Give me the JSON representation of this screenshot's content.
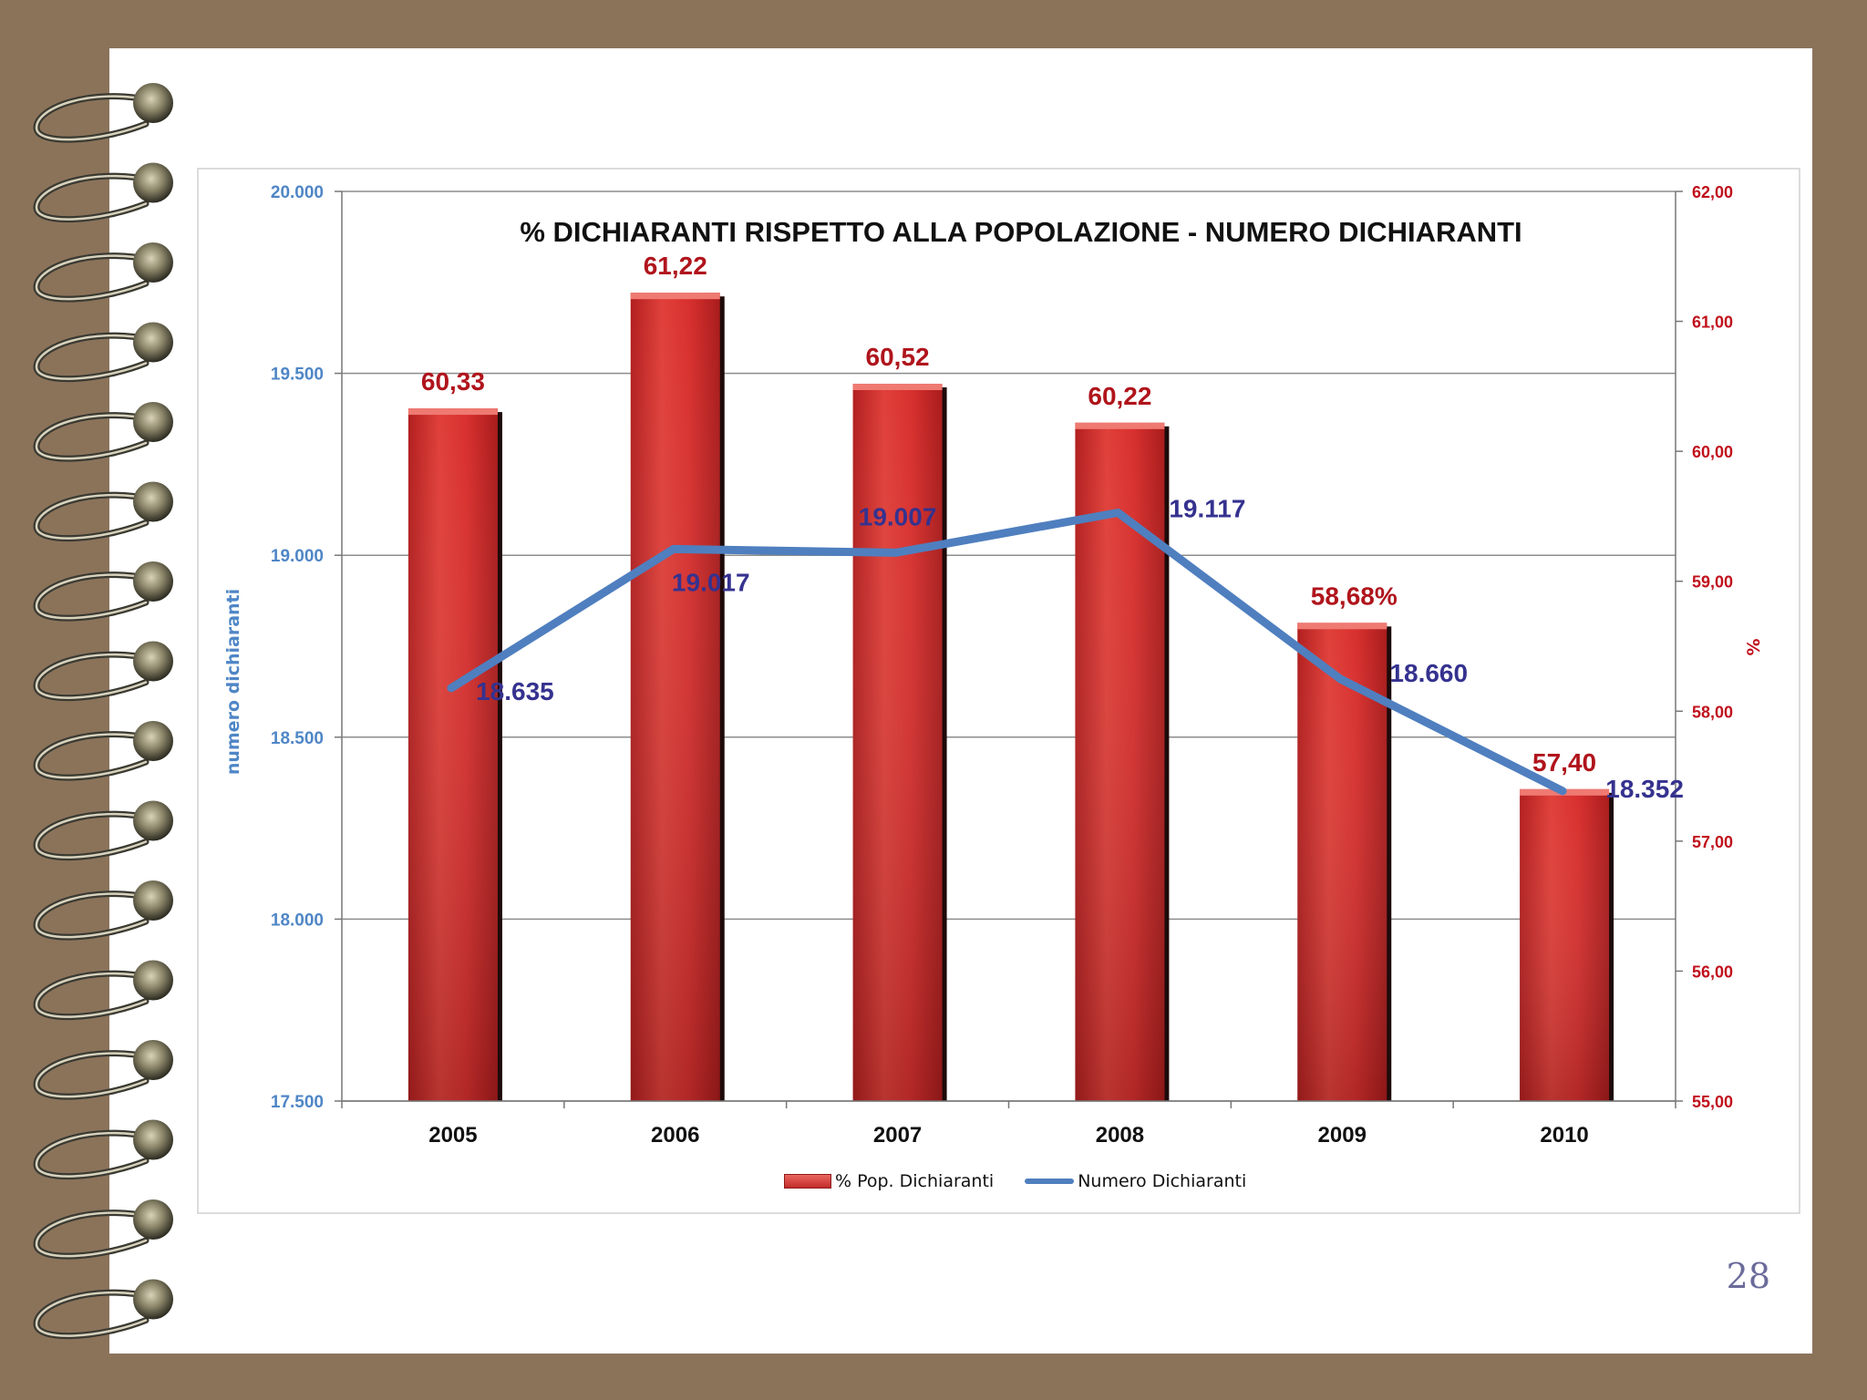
{
  "page_number": "28",
  "colors": {
    "bar": "#d8302e",
    "line": "#4f7fbf",
    "bar_label": "#b0141c",
    "line_label": "#35328f",
    "left_axis": "#4f86c6",
    "right_axis": "#c0101c"
  },
  "chart_data": {
    "type": "bar+line",
    "title": "%  DICHIARANTI  RISPETTO  ALLA POPOLAZIONE  -  NUMERO DICHIARANTI",
    "categories": [
      "2005",
      "2006",
      "2007",
      "2008",
      "2009",
      "2010"
    ],
    "series": [
      {
        "name": "% Pop. Dichiaranti",
        "type": "bar",
        "axis": "right",
        "values": [
          60.33,
          61.22,
          60.52,
          60.22,
          58.68,
          57.4
        ],
        "labels": [
          "60,33",
          "61,22",
          "60,52",
          "60,22",
          "58,68%",
          "57,40"
        ]
      },
      {
        "name": "Numero Dichiaranti",
        "type": "line",
        "axis": "left",
        "values": [
          18635,
          19017,
          19007,
          19117,
          18660,
          18352
        ],
        "labels": [
          "18.635",
          "19.017",
          "19.007",
          "19.117",
          "18.660",
          "18.352"
        ]
      }
    ],
    "left_axis": {
      "label": "numero dichiaranti",
      "range": [
        17500,
        20000
      ],
      "ticks": [
        "17.500",
        "18.000",
        "18.500",
        "19.000",
        "19.500",
        "20.000"
      ],
      "tick_values": [
        17500,
        18000,
        18500,
        19000,
        19500,
        20000
      ]
    },
    "right_axis": {
      "label": "%",
      "range": [
        55,
        62
      ],
      "ticks": [
        "55,00",
        "56,00",
        "57,00",
        "58,00",
        "59,00",
        "60,00",
        "61,00",
        "62,00"
      ],
      "tick_values": [
        55,
        56,
        57,
        58,
        59,
        60,
        61,
        62
      ]
    },
    "legend_position": "bottom",
    "grid": true
  }
}
